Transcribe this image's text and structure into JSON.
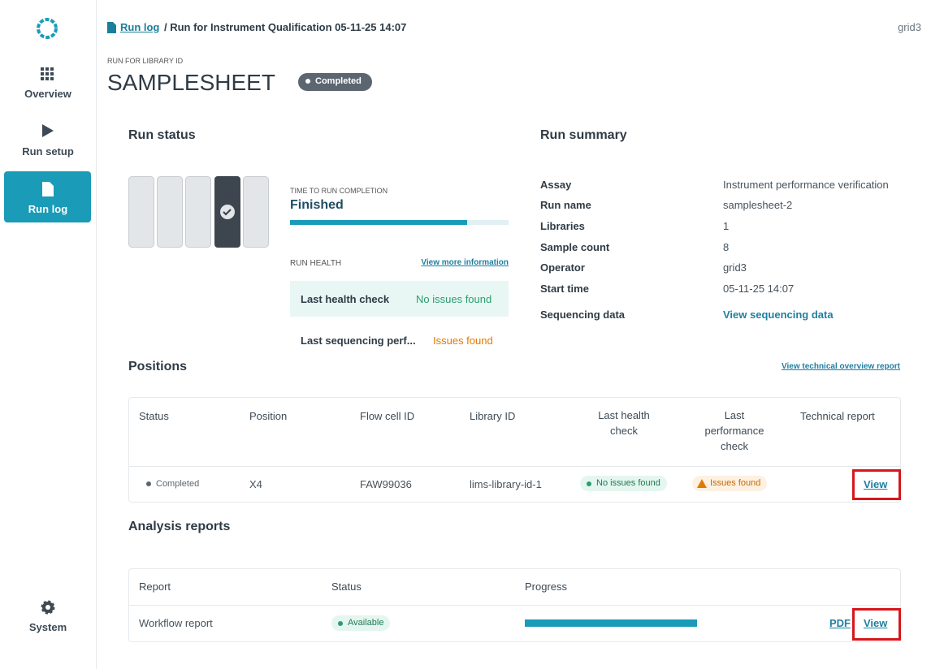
{
  "sidebar": {
    "items": [
      "Overview",
      "Run setup",
      "Run log",
      "System"
    ]
  },
  "header": {
    "breadcrumb_link": "Run log",
    "breadcrumb_rest": "/ Run for Instrument Qualification 05-11-25 14:07",
    "user": "grid3"
  },
  "run": {
    "eyebrow": "RUN FOR LIBRARY ID",
    "title": "SAMPLESHEET",
    "status": "Completed"
  },
  "run_status": {
    "heading": "Run status",
    "completion_label": "TIME TO RUN COMPLETION",
    "completion_value": "Finished",
    "health_label": "RUN HEALTH",
    "health_link": "View more information",
    "checks": [
      {
        "label": "Last health check",
        "value": "No issues found"
      },
      {
        "label": "Last sequencing perf...",
        "value": "Issues found"
      }
    ]
  },
  "run_summary": {
    "heading": "Run summary",
    "rows": [
      [
        "Assay",
        "Instrument performance verification"
      ],
      [
        "Run name",
        "samplesheet-2"
      ],
      [
        "Libraries",
        "1"
      ],
      [
        "Sample count",
        "8"
      ],
      [
        "Operator",
        "grid3"
      ],
      [
        "Start time",
        "05-11-25 14:07"
      ],
      [
        "Sequencing data",
        "View sequencing data"
      ]
    ]
  },
  "positions": {
    "heading": "Positions",
    "link": "View technical overview report",
    "columns": [
      "Status",
      "Position",
      "Flow cell ID",
      "Library ID",
      "Last health check",
      "Last performance check",
      "Technical report"
    ],
    "rows": [
      [
        "Completed",
        "X4",
        "FAW99036",
        "lims-library-id-1",
        "No issues found",
        "Issues found",
        "View"
      ]
    ]
  },
  "analysis": {
    "heading": "Analysis reports",
    "columns": [
      "Report",
      "Status",
      "Progress"
    ],
    "rows": [
      {
        "report": "Workflow report",
        "status": "Available",
        "pdf": "PDF",
        "view": "View"
      }
    ]
  }
}
